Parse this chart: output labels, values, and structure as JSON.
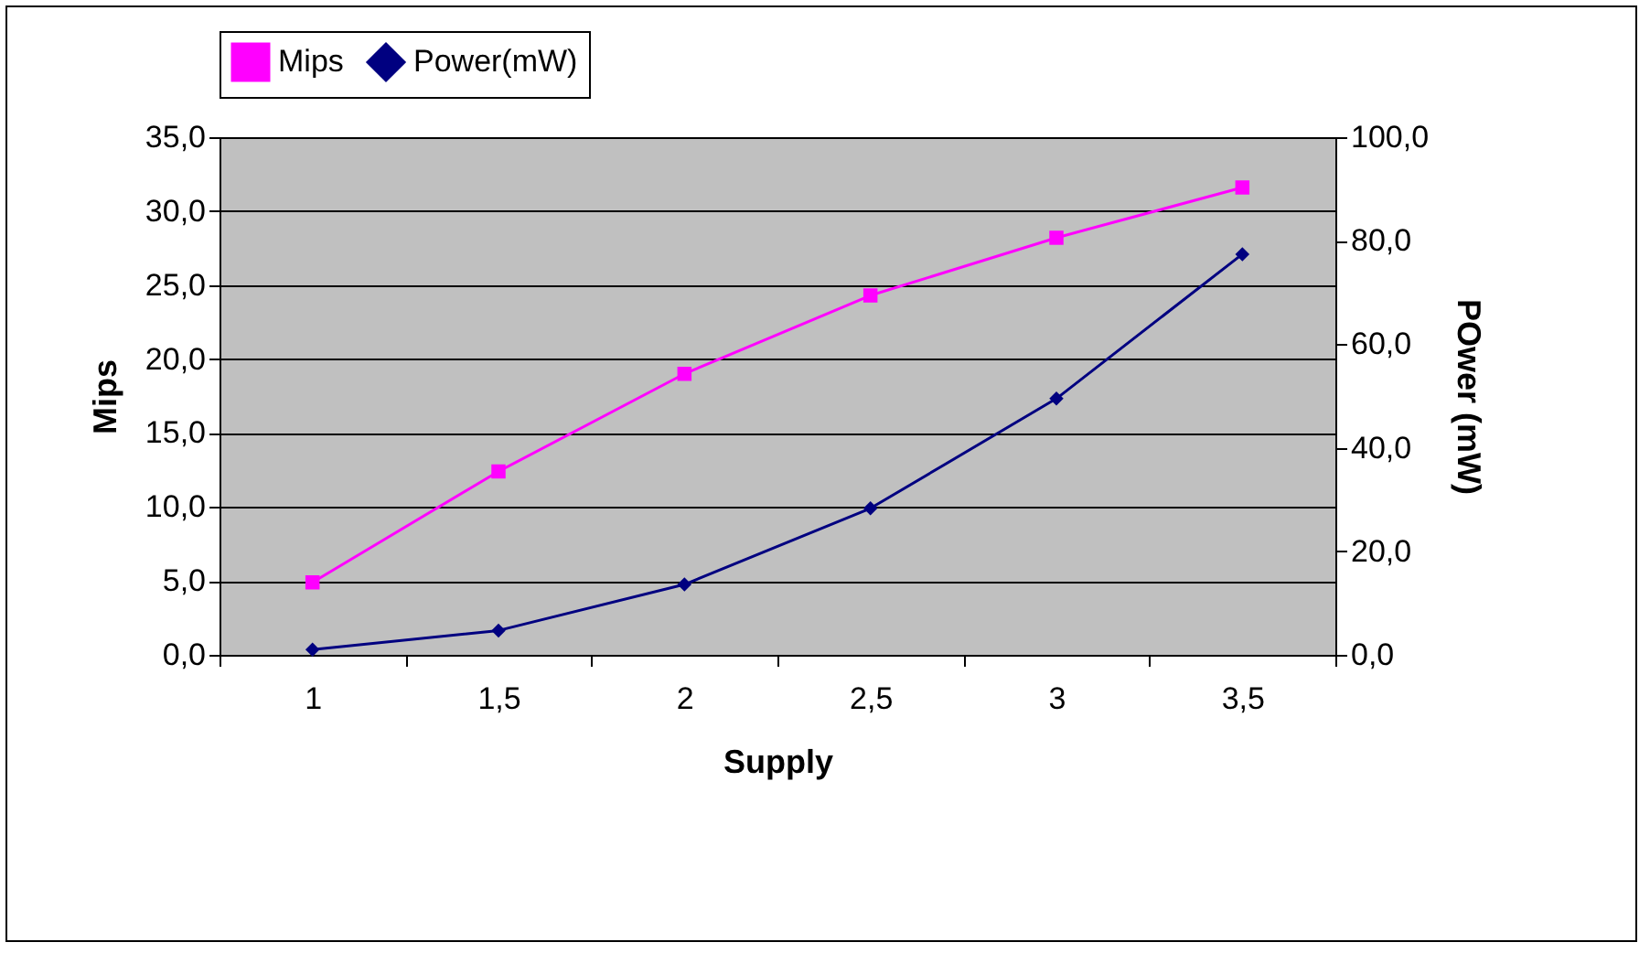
{
  "chart_data": {
    "type": "line",
    "categories": [
      "1",
      "1,5",
      "2",
      "2,5",
      "3",
      "3,5"
    ],
    "xlabel": "Supply",
    "ylabel": "Mips",
    "y2label": "POwer (mW)",
    "series": [
      {
        "name": "Mips",
        "color": "#ff00ff",
        "marker": "square",
        "values": [
          4.9,
          12.4,
          19.0,
          24.3,
          28.2,
          31.6
        ]
      },
      {
        "name": "Power(mW)",
        "color": "#000080",
        "marker": "diamond",
        "axis": "y2",
        "values": [
          1.0,
          4.7,
          13.6,
          28.3,
          49.5,
          77.4
        ]
      }
    ],
    "ylim": [
      0,
      35
    ],
    "yticks": [
      {
        "value": 0,
        "label": "0,0"
      },
      {
        "value": 5,
        "label": "5,0"
      },
      {
        "value": 10,
        "label": "10,0"
      },
      {
        "value": 15,
        "label": "15,0"
      },
      {
        "value": 20,
        "label": "20,0"
      },
      {
        "value": 25,
        "label": "25,0"
      },
      {
        "value": 30,
        "label": "30,0"
      },
      {
        "value": 35,
        "label": "35,0"
      }
    ],
    "y2lim": [
      0,
      100
    ],
    "y2ticks": [
      {
        "value": 0,
        "label": "0,0"
      },
      {
        "value": 20,
        "label": "20,0"
      },
      {
        "value": 40,
        "label": "40,0"
      },
      {
        "value": 60,
        "label": "60,0"
      },
      {
        "value": 80,
        "label": "80,0"
      },
      {
        "value": 100,
        "label": "100,0"
      }
    ],
    "grid": "y",
    "legend": "top"
  }
}
